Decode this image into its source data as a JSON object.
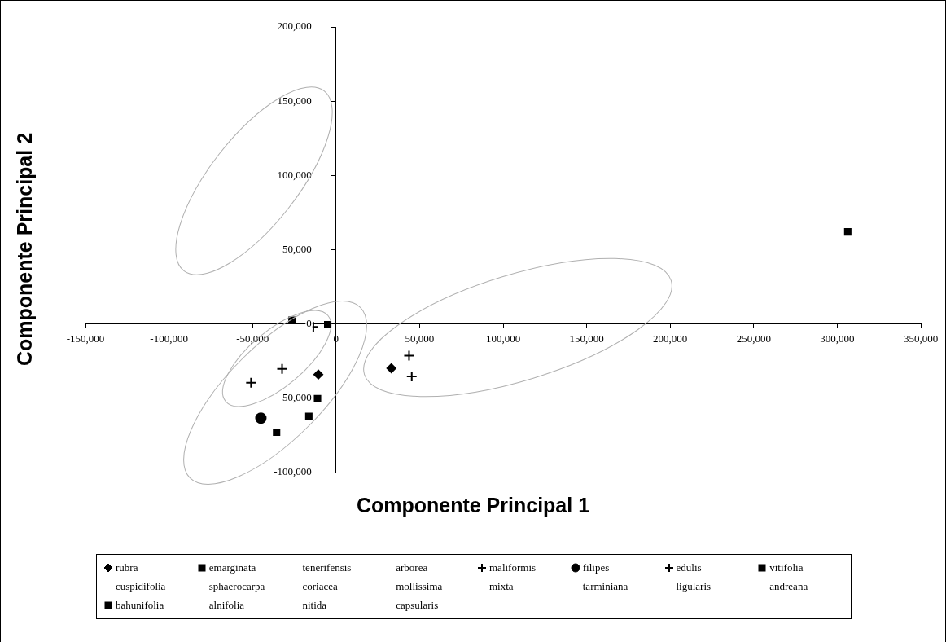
{
  "chart_data": {
    "type": "scatter",
    "xlabel": "Componente Principal 1",
    "ylabel": "Componente Principal 2",
    "xlim": [
      -150000,
      350000
    ],
    "xticks": [
      {
        "value": -150000,
        "label": "-150,000"
      },
      {
        "value": -100000,
        "label": "-100,000"
      },
      {
        "value": -50000,
        "label": "-50,000"
      },
      0,
      {
        "value": 50000,
        "label": "50,000"
      },
      {
        "value": 100000,
        "label": "100,000"
      },
      {
        "value": 150000,
        "label": "150,000"
      },
      {
        "value": 200000,
        "label": "200,000"
      },
      {
        "value": 250000,
        "label": "250,000"
      },
      {
        "value": 300000,
        "label": "300,000"
      },
      {
        "value": 350000,
        "label": "350,000"
      }
    ],
    "ylim": [
      -100000,
      200000
    ],
    "yticks": [
      {
        "value": -100000,
        "label": "-100,000"
      },
      {
        "value": -50000,
        "label": "-50,000"
      },
      0,
      {
        "value": 50000,
        "label": "50,000"
      },
      {
        "value": 100000,
        "label": "100,000"
      },
      {
        "value": 150000,
        "label": "150,000"
      },
      {
        "value": 200000,
        "label": "200,000"
      }
    ],
    "grid": false,
    "legend": "bottom",
    "series": [
      {
        "name": "rubra",
        "color": "#000000",
        "marker": "diamond",
        "x": [
          -10600,
          33100
        ],
        "values": [
          -34000,
          -29800
        ]
      },
      {
        "name": "emarginata",
        "color": "#000000",
        "marker": "square",
        "x": [
          -35600,
          306300
        ],
        "values": [
          -72900,
          62000
        ]
      },
      {
        "name": "tenerifensis",
        "marker": "none"
      },
      {
        "name": "arborea",
        "marker": "none"
      },
      {
        "name": "maliformis",
        "color": "#000000",
        "marker": "cross",
        "x": [
          43700,
          45300
        ],
        "values": [
          -21300,
          -35300
        ]
      },
      {
        "name": "filipes",
        "color": "#000000",
        "marker": "circle",
        "x": [
          -45000
        ],
        "values": [
          -63400
        ]
      },
      {
        "name": "edulis",
        "color": "#000000",
        "marker": "cross",
        "x": [
          -13600,
          -32300,
          -50900
        ],
        "values": [
          -2000,
          -30200,
          -39500
        ]
      },
      {
        "name": "vitifolia",
        "color": "#000000",
        "marker": "square",
        "x": [
          -26400,
          -5000
        ],
        "values": [
          2600,
          -500
        ]
      },
      {
        "name": "cuspidifolia",
        "marker": "none"
      },
      {
        "name": "sphaerocarpa",
        "marker": "none"
      },
      {
        "name": "coriacea",
        "marker": "none"
      },
      {
        "name": "mollissima",
        "marker": "none"
      },
      {
        "name": "mixta",
        "marker": "none"
      },
      {
        "name": "tarminiana",
        "marker": "none"
      },
      {
        "name": "ligularis",
        "marker": "none"
      },
      {
        "name": "andreana",
        "marker": "none"
      },
      {
        "name": "bahunifolia",
        "color": "#000000",
        "marker": "square",
        "x": [
          -11100,
          -16300
        ],
        "values": [
          -50300,
          -62200
        ]
      },
      {
        "name": "alnifolia",
        "marker": "none"
      },
      {
        "name": "nitida",
        "marker": "none"
      },
      {
        "name": "capsularis",
        "marker": "none"
      }
    ]
  }
}
